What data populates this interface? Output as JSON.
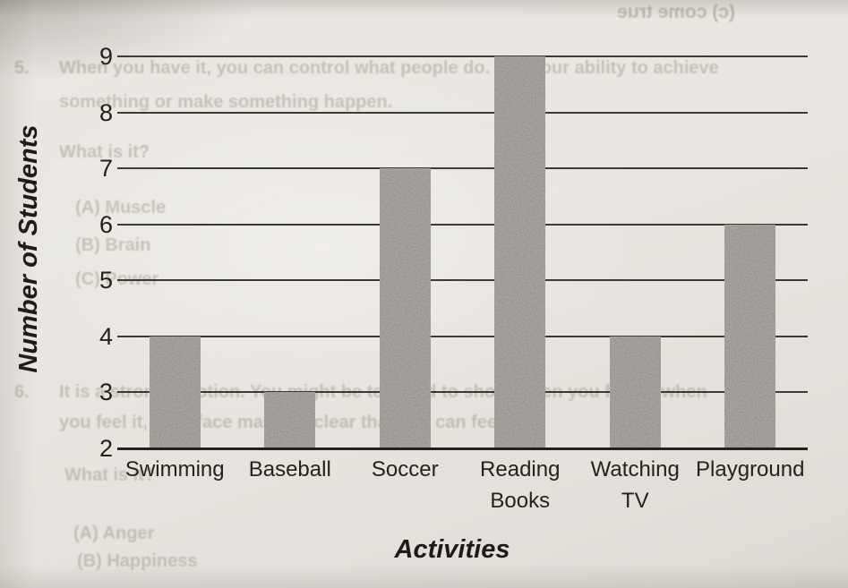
{
  "chart_data": {
    "type": "bar",
    "title": "",
    "categories": [
      "Swimming",
      "Baseball",
      "Soccer",
      "Reading Books",
      "Watching TV",
      "Playground"
    ],
    "values": [
      4,
      3,
      7,
      9,
      4,
      6
    ],
    "xlabel": "Activities",
    "ylabel": "Number of Students",
    "ylim": [
      2,
      9
    ],
    "ytick_step": 1,
    "grid": "horizontal",
    "legend": "none",
    "bar_texture": "grainy-halftone-gray"
  },
  "colors": {
    "paper": "#e9e6e1",
    "ink": "#222019",
    "bar_gray": "#8e8b86",
    "bleed_text": "#968c7d"
  },
  "bleedthrough_text": {
    "mirrored_top_right": "(c)   come true",
    "question5": {
      "number": "5.",
      "line1": "When you have it, you can control what people do. It is your ability to achieve",
      "line2": "something or make something happen.",
      "prompt": "What is it?",
      "options": [
        "(A)   Muscle",
        "(B)   Brain",
        "(C)   Power"
      ]
    },
    "question6": {
      "number": "6.",
      "line1": "It is a strong emotion. You might be tempted to shout when you feel it, when",
      "line2": "you feel it, your face makes it clear that you can feel it.",
      "prompt": "What is it?",
      "options": [
        "(A)   Anger",
        "(B)   Happiness"
      ]
    }
  }
}
